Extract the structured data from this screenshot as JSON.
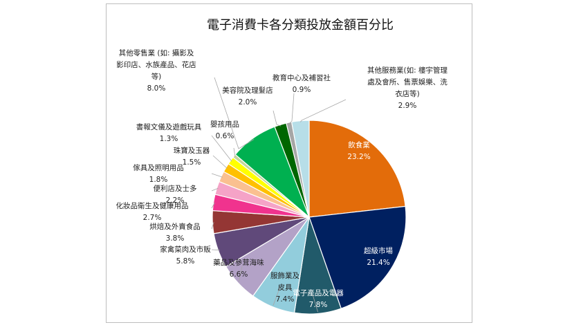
{
  "chart_data": {
    "type": "pie",
    "title": "電子消費卡各分類投放金額百分比",
    "slices": [
      {
        "label": "飲食業",
        "value": 23.2,
        "value_text": "23.2%",
        "color": "#E36C0A"
      },
      {
        "label": "超級市場",
        "value": 21.4,
        "value_text": "21.4%",
        "color": "#002060"
      },
      {
        "label": "電子產品及電器",
        "value": 7.8,
        "value_text": "7.8%",
        "color": "#215A6A"
      },
      {
        "label": "服飾業及皮具",
        "value": 7.4,
        "value_text": "7.4%",
        "color": "#92CDDC"
      },
      {
        "label": "藥品及參茸海味",
        "value": 6.6,
        "value_text": "6.6%",
        "color": "#B3A2C7"
      },
      {
        "label": "家禽菜肉及市販",
        "value": 5.8,
        "value_text": "5.8%",
        "color": "#60497A"
      },
      {
        "label": "烘焙及外賣食品",
        "value": 3.8,
        "value_text": "3.8%",
        "color": "#943634"
      },
      {
        "label": "化妝品衛生及健康用品",
        "value": 2.7,
        "value_text": "2.7%",
        "color": "#F0338E"
      },
      {
        "label": "便利店及士多",
        "value": 2.2,
        "value_text": "2.2%",
        "color": "#F5A3C7"
      },
      {
        "label": "傢具及照明用品",
        "value": 1.8,
        "value_text": "1.8%",
        "color": "#FAC090"
      },
      {
        "label": "珠寶及玉器",
        "value": 1.5,
        "value_text": "1.5%",
        "color": "#FFC000"
      },
      {
        "label": "書報文儀及遊戲玩具",
        "value": 1.3,
        "value_text": "1.3%",
        "color": "#FFFF00"
      },
      {
        "label": "嬰孩用品",
        "value": 0.6,
        "value_text": "0.6%",
        "color": "#C3D69B"
      },
      {
        "label": "其他零售業 (如: 攝影及影印店、水族產品、花店等)",
        "value": 8.0,
        "value_text": "8.0%",
        "color": "#00B050"
      },
      {
        "label": "美容院及理髮店",
        "value": 2.0,
        "value_text": "2.0%",
        "color": "#006600"
      },
      {
        "label": "教育中心及補習社",
        "value": 0.9,
        "value_text": "0.9%",
        "color": "#A6A6A6"
      },
      {
        "label": "其他服務業(如: 樓宇管理處及會所、售票娛樂、洗衣店等)",
        "value": 2.9,
        "value_text": "2.9%",
        "color": "#B7DEE8"
      }
    ]
  },
  "label_lines": [
    [
      "飲食業"
    ],
    [
      "超級市場"
    ],
    [
      "電子產品及電器"
    ],
    [
      "服飾業及",
      "皮具"
    ],
    [
      "藥品及參茸海味"
    ],
    [
      "家禽菜肉及市販"
    ],
    [
      "烘焙及外賣食品"
    ],
    [
      "化妝品衛生及健康用品"
    ],
    [
      "便利店及士多"
    ],
    [
      "傢具及照明用品"
    ],
    [
      "珠寶及玉器"
    ],
    [
      "書報文儀及遊戲玩具"
    ],
    [
      "嬰孩用品"
    ],
    [
      "其他零售業 (如: 攝影及",
      "影印店、水族產品、花店",
      "等)"
    ],
    [
      "美容院及理髮店"
    ],
    [
      "教育中心及補習社"
    ],
    [
      "其他服務業(如: 樓宇管理",
      "處及會所、售票娛樂、洗",
      "衣店等)"
    ]
  ]
}
